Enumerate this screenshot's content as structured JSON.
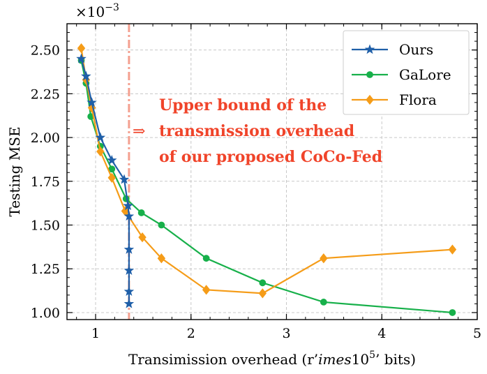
{
  "chart_data": {
    "type": "line",
    "title": "",
    "xlabel": "Transimission overhead (r'imes10^5' bits)",
    "xlabel_parts": {
      "pre": "Transimission overhead (r’",
      "italic": "imes",
      "num": "10",
      "sup": "5",
      "post": "’ bits)"
    },
    "ylabel": "Testing MSE",
    "y_multiplier": {
      "base": "×10",
      "exponent": "−3"
    },
    "xlim": [
      0.7,
      5.0
    ],
    "ylim": [
      0.96,
      2.65
    ],
    "xticks": [
      1,
      2,
      3,
      4,
      5
    ],
    "xtick_labels": [
      "1",
      "2",
      "3",
      "4",
      "5"
    ],
    "yticks": [
      1.0,
      1.25,
      1.5,
      1.75,
      2.0,
      2.25,
      2.5
    ],
    "ytick_labels": [
      "1.00",
      "1.25",
      "1.50",
      "1.75",
      "2.00",
      "2.25",
      "2.50"
    ],
    "grid": true,
    "legend_position": "top-right",
    "series": [
      {
        "name": "Ours",
        "color": "#1f5fa8",
        "marker": "star",
        "x": [
          0.85,
          0.9,
          0.96,
          1.05,
          1.17,
          1.3,
          1.34,
          1.35,
          1.35,
          1.35,
          1.35,
          1.35
        ],
        "y": [
          2.45,
          2.35,
          2.2,
          2.0,
          1.87,
          1.76,
          1.61,
          1.55,
          1.36,
          1.24,
          1.12,
          1.05
        ]
      },
      {
        "name": "GaLore",
        "color": "#17b04a",
        "marker": "circle",
        "x": [
          0.85,
          0.9,
          0.95,
          1.05,
          1.17,
          1.32,
          1.48,
          1.69,
          2.16,
          2.75,
          3.39,
          4.74
        ],
        "y": [
          2.44,
          2.31,
          2.12,
          1.95,
          1.82,
          1.65,
          1.57,
          1.5,
          1.31,
          1.17,
          1.06,
          1.0
        ]
      },
      {
        "name": "Flora",
        "color": "#f59c18",
        "marker": "diamond",
        "x": [
          0.85,
          0.9,
          0.96,
          1.05,
          1.17,
          1.31,
          1.49,
          1.69,
          2.16,
          2.75,
          3.39,
          4.74
        ],
        "y": [
          2.51,
          2.33,
          2.17,
          1.92,
          1.77,
          1.58,
          1.43,
          1.31,
          1.13,
          1.11,
          1.31,
          1.36
        ]
      }
    ],
    "reference_line": {
      "x": 1.35,
      "color": "#f4a090",
      "style": "dash-dot"
    },
    "annotation": {
      "arrow": "⇒",
      "lines": [
        "Upper bound of the",
        "transmission overhead",
        "of our proposed CoCo-Fed"
      ],
      "color": "#f0442a"
    }
  }
}
